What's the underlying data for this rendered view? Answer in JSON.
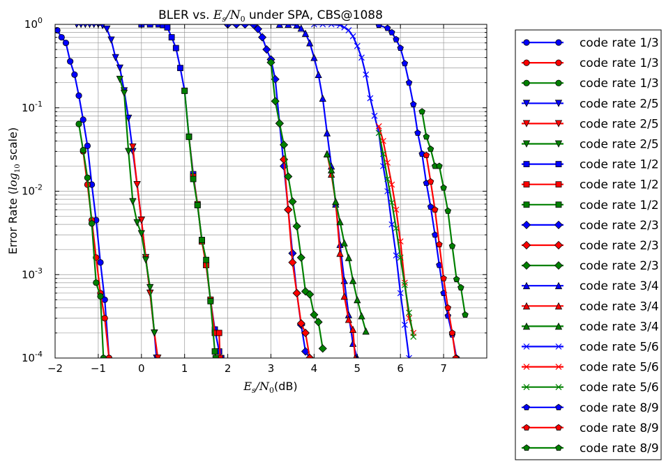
{
  "chart_data": {
    "type": "line",
    "title": "BLER vs. E_s/N_0 under SPA, CBS@1088",
    "title_parts": {
      "prefix": "BLER vs. ",
      "es": "E",
      "es_sub": "s",
      "sep": "/",
      "n": "N",
      "n_sub": "0",
      "suffix": " under SPA, CBS@1088"
    },
    "xlabel_parts": {
      "es": "E",
      "es_sub": "s",
      "sep": "/",
      "n": "N",
      "n_sub": "0",
      "suffix": "(dB)"
    },
    "ylabel_parts": {
      "prefix": "Error Rate (",
      "log": "log",
      "log_sub": "10",
      "suffix": " scale)"
    },
    "x_ticks": [
      "−2",
      "−1",
      "0",
      "1",
      "2",
      "3",
      "4",
      "5",
      "6",
      "7"
    ],
    "y_ticks": [
      {
        "base": "10",
        "exp": "0"
      },
      {
        "base": "10",
        "exp": "-1"
      },
      {
        "base": "10",
        "exp": "-2"
      },
      {
        "base": "10",
        "exp": "-3"
      },
      {
        "base": "10",
        "exp": "-4"
      }
    ],
    "xlim": [
      -2,
      8
    ],
    "ylim": [
      0.0001,
      1
    ],
    "yscale": "log",
    "grid": true,
    "legend_position": "outside-right",
    "colors": {
      "blue": "#0000ff",
      "red": "#ff0000",
      "green": "#008000"
    },
    "series": [
      {
        "name": "code rate 1/3",
        "color": "#0000ff",
        "marker": "circle",
        "x": [
          -1.95,
          -1.85,
          -1.75,
          -1.65,
          -1.55,
          -1.45,
          -1.35,
          -1.25,
          -1.15,
          -1.05,
          -0.95,
          -0.85,
          -0.75
        ],
        "y": [
          0.85,
          0.7,
          0.6,
          0.36,
          0.25,
          0.14,
          0.072,
          0.035,
          0.012,
          0.0045,
          0.0014,
          0.0005,
          0.0001
        ]
      },
      {
        "name": "code rate 1/3",
        "color": "#ff0000",
        "marker": "circle",
        "x": [
          -1.35,
          -1.25,
          -1.15,
          -1.05,
          -0.95,
          -0.85,
          -0.75
        ],
        "y": [
          0.03,
          0.012,
          0.0045,
          0.0016,
          0.0006,
          0.0003,
          0.0001
        ]
      },
      {
        "name": "code rate 1/3",
        "color": "#008000",
        "marker": "circle",
        "x": [
          -1.45,
          -1.35,
          -1.25,
          -1.15,
          -1.05,
          -0.95,
          -0.88
        ],
        "y": [
          0.064,
          0.031,
          0.0145,
          0.0041,
          0.0008,
          0.00055,
          0.0001
        ]
      },
      {
        "name": "code rate 2/5",
        "color": "#0000ff",
        "marker": "triangle-down",
        "x": [
          -1.5,
          -1.4,
          -1.3,
          -1.2,
          -1.1,
          -1.0,
          -0.9,
          -0.8,
          -0.7,
          -0.6,
          -0.5,
          -0.4,
          -0.3,
          -0.2,
          -0.1,
          0.0,
          0.1,
          0.2,
          0.3,
          0.35
        ],
        "y": [
          1,
          1,
          1,
          1,
          1,
          1,
          0.97,
          0.88,
          0.65,
          0.4,
          0.3,
          0.16,
          0.075,
          0.03,
          0.012,
          0.0045,
          0.0016,
          0.0006,
          0.0002,
          0.0001
        ]
      },
      {
        "name": "code rate 2/5",
        "color": "#ff0000",
        "marker": "triangle-down",
        "x": [
          -0.2,
          -0.1,
          0.0,
          0.1,
          0.2,
          0.3,
          0.38
        ],
        "y": [
          0.034,
          0.012,
          0.0045,
          0.0016,
          0.0006,
          0.0002,
          0.0001
        ]
      },
      {
        "name": "code rate 2/5",
        "color": "#008000",
        "marker": "triangle-down",
        "x": [
          -0.5,
          -0.4,
          -0.3,
          -0.2,
          -0.1,
          0.0,
          0.1,
          0.2,
          0.3
        ],
        "y": [
          0.22,
          0.15,
          0.03,
          0.0075,
          0.0042,
          0.0031,
          0.0015,
          0.0007,
          0.0002
        ]
      },
      {
        "name": "code rate 1/2",
        "color": "#0000ff",
        "marker": "square",
        "x": [
          0.0,
          0.2,
          0.4,
          0.5,
          0.6,
          0.7,
          0.8,
          0.9,
          1.0,
          1.1,
          1.2,
          1.3,
          1.4,
          1.5,
          1.6,
          1.7,
          1.8,
          1.85
        ],
        "y": [
          1,
          1,
          1,
          0.98,
          0.92,
          0.7,
          0.52,
          0.3,
          0.16,
          0.045,
          0.016,
          0.0068,
          0.0026,
          0.0013,
          0.0005,
          0.00022,
          0.00012,
          0.0001
        ]
      },
      {
        "name": "code rate 1/2",
        "color": "#ff0000",
        "marker": "square",
        "x": [
          1.1,
          1.2,
          1.3,
          1.4,
          1.5,
          1.6,
          1.7,
          1.8,
          1.82
        ],
        "y": [
          0.045,
          0.015,
          0.007,
          0.0025,
          0.0013,
          0.0005,
          0.0002,
          0.0002,
          0.0001
        ]
      },
      {
        "name": "code rate 1/2",
        "color": "#008000",
        "marker": "square",
        "x": [
          1.0,
          1.1,
          1.2,
          1.3,
          1.4,
          1.5,
          1.6,
          1.7,
          1.72
        ],
        "y": [
          0.16,
          0.045,
          0.014,
          0.0068,
          0.0026,
          0.0015,
          0.00048,
          0.00012,
          0.0001
        ]
      },
      {
        "name": "code rate 2/3",
        "color": "#0000ff",
        "marker": "diamond",
        "x": [
          2.0,
          2.2,
          2.4,
          2.6,
          2.7,
          2.8,
          2.9,
          3.0,
          3.1,
          3.2,
          3.3,
          3.4,
          3.5,
          3.6,
          3.7,
          3.8,
          3.9
        ],
        "y": [
          1,
          1,
          1,
          0.99,
          0.88,
          0.7,
          0.5,
          0.38,
          0.22,
          0.065,
          0.02,
          0.006,
          0.0018,
          0.0006,
          0.00025,
          0.00012,
          0.0001
        ]
      },
      {
        "name": "code rate 2/3",
        "color": "#ff0000",
        "marker": "diamond",
        "x": [
          3.3,
          3.4,
          3.5,
          3.6,
          3.7,
          3.8,
          3.9
        ],
        "y": [
          0.024,
          0.006,
          0.0014,
          0.0006,
          0.00026,
          0.0002,
          0.0001
        ]
      },
      {
        "name": "code rate 2/3",
        "color": "#008000",
        "marker": "diamond",
        "x": [
          3.0,
          3.1,
          3.2,
          3.3,
          3.4,
          3.5,
          3.6,
          3.7,
          3.8,
          3.9,
          4.0,
          4.1,
          4.2
        ],
        "y": [
          0.35,
          0.12,
          0.065,
          0.036,
          0.015,
          0.0075,
          0.0038,
          0.0016,
          0.00063,
          0.00058,
          0.00033,
          0.00027,
          0.00013
        ]
      },
      {
        "name": "code rate 3/4",
        "color": "#0000ff",
        "marker": "triangle-up",
        "x": [
          3.2,
          3.4,
          3.6,
          3.7,
          3.8,
          3.9,
          4.0,
          4.1,
          4.2,
          4.3,
          4.4,
          4.5,
          4.6,
          4.7,
          4.8,
          4.9,
          5.0
        ],
        "y": [
          1,
          1,
          0.98,
          0.9,
          0.78,
          0.6,
          0.4,
          0.25,
          0.13,
          0.05,
          0.02,
          0.007,
          0.0023,
          0.00085,
          0.00033,
          0.00015,
          0.0001
        ]
      },
      {
        "name": "code rate 3/4",
        "color": "#ff0000",
        "marker": "triangle-up",
        "x": [
          4.3,
          4.4,
          4.5,
          4.6,
          4.7,
          4.8,
          4.9,
          4.95
        ],
        "y": [
          0.028,
          0.016,
          0.0075,
          0.0018,
          0.00055,
          0.00029,
          0.00022,
          0.0001
        ]
      },
      {
        "name": "code rate 3/4",
        "color": "#008000",
        "marker": "triangle-up",
        "x": [
          4.3,
          4.4,
          4.5,
          4.6,
          4.7,
          4.8,
          4.9,
          5.0,
          5.1,
          5.2
        ],
        "y": [
          0.028,
          0.018,
          0.0075,
          0.0043,
          0.0024,
          0.0016,
          0.00085,
          0.0005,
          0.00032,
          0.00021
        ]
      },
      {
        "name": "code rate 5/6",
        "color": "#0000ff",
        "marker": "x",
        "x": [
          4.0,
          4.2,
          4.4,
          4.6,
          4.7,
          4.8,
          4.9,
          5.0,
          5.1,
          5.2,
          5.3,
          5.4,
          5.5,
          5.6,
          5.7,
          5.8,
          5.9,
          6.0,
          6.1,
          6.2
        ],
        "y": [
          1,
          1,
          1,
          0.98,
          0.92,
          0.85,
          0.72,
          0.55,
          0.4,
          0.25,
          0.13,
          0.08,
          0.05,
          0.02,
          0.01,
          0.004,
          0.0017,
          0.0006,
          0.00025,
          0.0001
        ]
      },
      {
        "name": "code rate 5/6",
        "color": "#ff0000",
        "marker": "x",
        "x": [
          5.5,
          5.6,
          5.7,
          5.8,
          5.9,
          6.0,
          6.1,
          6.2,
          6.3
        ],
        "y": [
          0.06,
          0.04,
          0.022,
          0.012,
          0.006,
          0.0025,
          0.0008,
          0.0003,
          0.0002
        ]
      },
      {
        "name": "code rate 5/6",
        "color": "#008000",
        "marker": "x",
        "x": [
          5.5,
          5.6,
          5.7,
          5.8,
          5.9,
          6.0,
          6.1,
          6.2,
          6.3
        ],
        "y": [
          0.05,
          0.028,
          0.014,
          0.0073,
          0.0036,
          0.0016,
          0.00075,
          0.00035,
          0.00018
        ]
      },
      {
        "name": "code rate 8/9",
        "color": "#0000ff",
        "marker": "pentagon",
        "x": [
          5.5,
          5.7,
          5.8,
          5.9,
          6.0,
          6.1,
          6.2,
          6.3,
          6.4,
          6.5,
          6.6,
          6.7,
          6.8,
          6.9,
          7.0,
          7.1,
          7.2,
          7.3
        ],
        "y": [
          0.98,
          0.9,
          0.8,
          0.66,
          0.52,
          0.34,
          0.2,
          0.11,
          0.05,
          0.028,
          0.0125,
          0.0065,
          0.003,
          0.0013,
          0.0006,
          0.00032,
          0.00019,
          0.0001
        ]
      },
      {
        "name": "code rate 8/9",
        "color": "#ff0000",
        "marker": "pentagon",
        "x": [
          6.6,
          6.7,
          6.8,
          6.9,
          7.0,
          7.1,
          7.2,
          7.28
        ],
        "y": [
          0.027,
          0.013,
          0.006,
          0.0023,
          0.0009,
          0.0004,
          0.0002,
          0.0001
        ]
      },
      {
        "name": "code rate 8/9",
        "color": "#008000",
        "marker": "pentagon",
        "x": [
          6.5,
          6.6,
          6.7,
          6.8,
          6.9,
          7.0,
          7.1,
          7.2,
          7.3,
          7.4,
          7.5
        ],
        "y": [
          0.09,
          0.045,
          0.032,
          0.02,
          0.02,
          0.011,
          0.0058,
          0.0022,
          0.00088,
          0.0007,
          0.00033
        ]
      }
    ]
  }
}
